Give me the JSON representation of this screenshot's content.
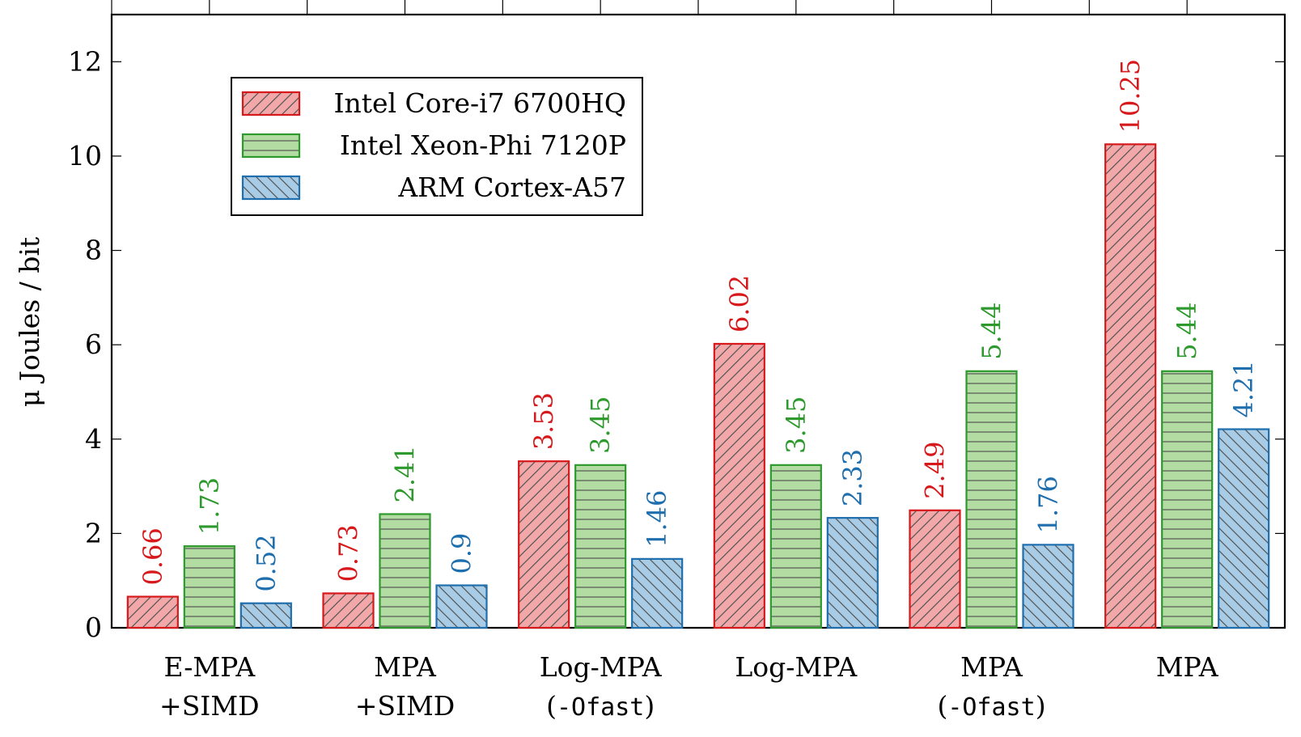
{
  "chart_data": {
    "type": "bar",
    "ylabel": "μ Joules / bit",
    "xlabel": "",
    "ylim": [
      0,
      13
    ],
    "yticks": [
      0,
      2,
      4,
      6,
      8,
      10,
      12
    ],
    "grid": false,
    "legend_position": "top-left",
    "categories": [
      [
        "E-MPA",
        "+SIMD"
      ],
      [
        "MPA",
        "+SIMD"
      ],
      [
        "Log-MPA",
        "(-Ofast)"
      ],
      [
        "Log-MPA"
      ],
      [
        "MPA",
        "(-Ofast)"
      ],
      [
        "MPA"
      ]
    ],
    "series": [
      {
        "name": "Intel Core-i7 6700HQ",
        "values": [
          0.66,
          0.73,
          3.53,
          6.02,
          2.49,
          10.25
        ],
        "value_labels": [
          "0.66",
          "0.73",
          "3.53",
          "6.02",
          "2.49",
          "10.25"
        ],
        "color": "#d7191c",
        "fill": "#f2a7a9",
        "pattern": "north-east-lines"
      },
      {
        "name": "Intel Xeon-Phi 7120P",
        "values": [
          1.73,
          2.41,
          3.45,
          3.45,
          5.44,
          5.44
        ],
        "value_labels": [
          "1.73",
          "2.41",
          "3.45",
          "3.45",
          "5.44",
          "5.44"
        ],
        "color": "#2e9a2e",
        "fill": "#b2dca2",
        "pattern": "horizontal-lines"
      },
      {
        "name": "ARM Cortex-A57",
        "values": [
          0.52,
          0.9,
          1.46,
          2.33,
          1.76,
          4.21
        ],
        "value_labels": [
          "0.52",
          "0.9",
          "1.46",
          "2.33",
          "1.76",
          "4.21"
        ],
        "color": "#1f6fae",
        "fill": "#a8cbe6",
        "pattern": "north-west-lines"
      }
    ]
  }
}
